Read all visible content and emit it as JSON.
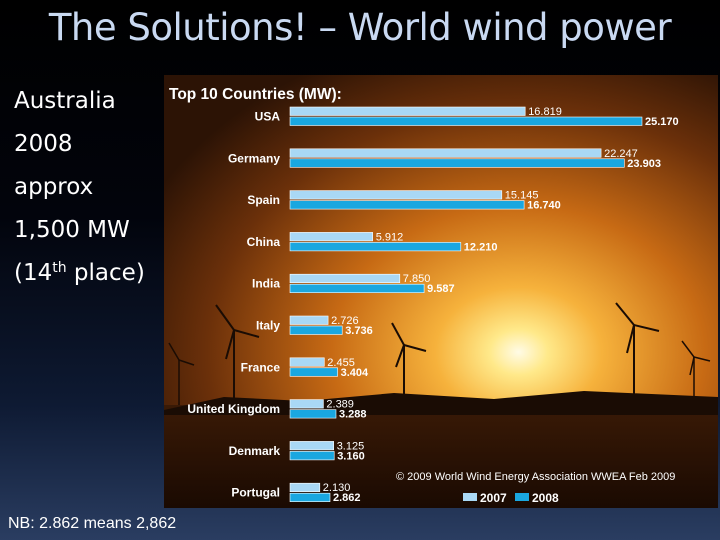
{
  "slide": {
    "title": "The Solutions! – World wind power",
    "note_lines": [
      "Australia",
      "2008",
      "approx",
      "1,500 MW"
    ],
    "rank_prefix": "(14",
    "rank_suffix": "th",
    "rank_tail": " place)",
    "footnote": "NB: 2.862 means 2,862"
  },
  "colors": {
    "series_2007": "#a9d8f5",
    "series_2008": "#1aa7e0",
    "label_text": "#ffffff",
    "chart_title": "#ffffff"
  },
  "chart_data": {
    "type": "bar",
    "orientation": "horizontal",
    "title": "Top 10 Countries (MW):",
    "categories": [
      "USA",
      "Germany",
      "Spain",
      "China",
      "India",
      "Italy",
      "France",
      "United Kingdom",
      "Denmark",
      "Portugal"
    ],
    "series": [
      {
        "name": "2007",
        "values": [
          16819,
          22247,
          15145,
          5912,
          7850,
          2726,
          2455,
          2389,
          3125,
          2130
        ],
        "labels": [
          "16.819",
          "22.247",
          "15.145",
          "5.912",
          "7.850",
          "2.726",
          "2.455",
          "2.389",
          "3.125",
          "2.130"
        ]
      },
      {
        "name": "2008",
        "values": [
          25170,
          23903,
          16740,
          12210,
          9587,
          3736,
          3404,
          3288,
          3160,
          2862
        ],
        "labels": [
          "25.170",
          "23.903",
          "16.740",
          "12.210",
          "9.587",
          "3.736",
          "3.404",
          "3.288",
          "3.160",
          "2.862"
        ]
      }
    ],
    "xlim": [
      0,
      25170
    ],
    "legend": [
      "2007",
      "2008"
    ],
    "legend_position": "bottom-right",
    "credit": "© 2009 World Wind Energy Association WWEA  Feb 2009",
    "grid": false
  }
}
